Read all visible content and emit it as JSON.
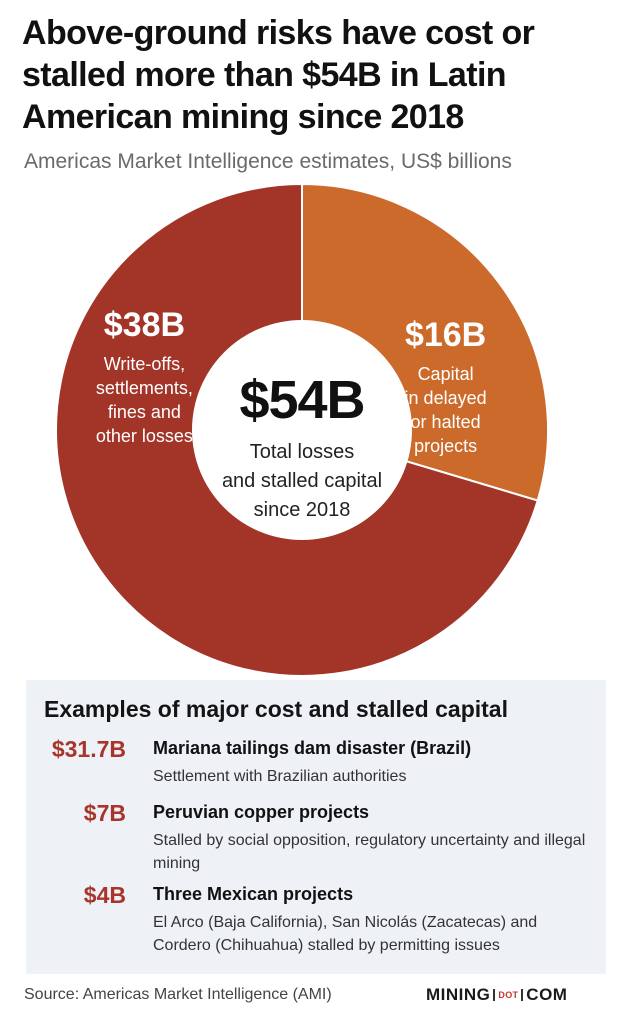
{
  "header": {
    "title": "Above-ground risks have cost or stalled more than $54B in Latin American mining since 2018",
    "subtitle": "Americas Market Intelligence estimates, US$ billions"
  },
  "chart_data": {
    "type": "pie",
    "donut": true,
    "unit": "US$ billions",
    "total_value": 54,
    "center_value_label": "$54B",
    "center_label_lines": [
      "Total losses",
      "and stalled capital",
      "since 2018"
    ],
    "slices": [
      {
        "value": 16,
        "value_label": "$16B",
        "label_lines": [
          "Capital",
          "in delayed",
          "or halted",
          "projects"
        ],
        "color": "#cc6a2b"
      },
      {
        "value": 38,
        "value_label": "$38B",
        "label_lines": [
          "Write-offs,",
          "settlements,",
          "fines and",
          "other losses"
        ],
        "color": "#a33428"
      }
    ]
  },
  "examples": {
    "heading": "Examples of major cost and stalled capital",
    "items": [
      {
        "value": "$31.7B",
        "name": "Mariana tailings dam disaster (Brazil)",
        "description": "Settlement with Brazilian authorities"
      },
      {
        "value": "$7B",
        "name": "Peruvian copper projects",
        "description": "Stalled by social opposition, regulatory uncertainty and illegal mining"
      },
      {
        "value": "$4B",
        "name": "Three Mexican projects",
        "description": "El Arco (Baja California), San Nicolás (Zacatecas) and Cordero (Chihuahua) stalled by permitting issues"
      }
    ]
  },
  "footer": {
    "source": "Source: Americas Market Intelligence (AMI)",
    "logo_left": "MINING",
    "logo_mid": "DOT",
    "logo_right": "COM"
  },
  "colors": {
    "accent_red": "#a7352b",
    "panel_bg": "#eef1f6"
  }
}
